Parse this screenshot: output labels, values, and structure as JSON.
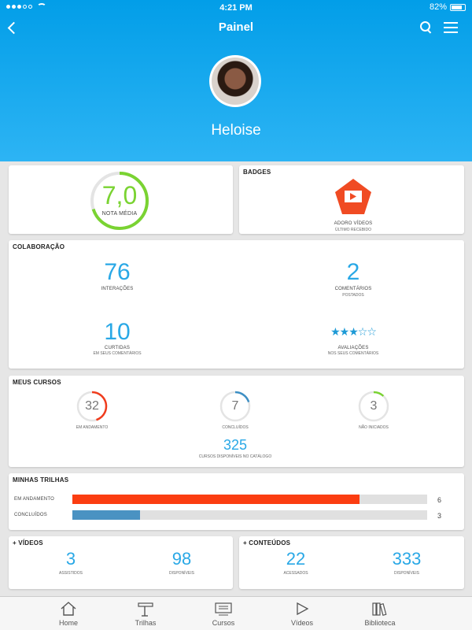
{
  "status": {
    "time": "4:21 PM",
    "battery": "82%"
  },
  "header": {
    "title": "Painel",
    "user": "Heloise"
  },
  "score": {
    "value": "7,0",
    "label": "NOTA MÉDIA",
    "fraction": 0.7
  },
  "badges": {
    "title": "BADGES",
    "name": "ADORO VÍDEOS",
    "sub": "ÚLTIMO RECEBIDO"
  },
  "colab": {
    "title": "COLABORAÇÃO",
    "interacoes": {
      "value": "76",
      "label": "INTERAÇÕES"
    },
    "comentarios": {
      "value": "2",
      "label": "COMENTÁRIOS",
      "sub": "POSTADOS"
    },
    "curtidas": {
      "value": "10",
      "label": "CURTIDAS",
      "sub": "EM SEUS COMENTÁRIOS"
    },
    "avaliacoes": {
      "stars": 3,
      "max": 5,
      "label": "AVALIAÇÕES",
      "sub": "NOS SEUS COMENTÁRIOS"
    }
  },
  "cursos": {
    "title": "MEUS CURSOS",
    "andamento": {
      "value": "32",
      "label": "EM ANDAMENTO",
      "fraction": 0.45,
      "color": "#f03c1d"
    },
    "concluidos": {
      "value": "7",
      "label": "CONCLUÍDOS",
      "fraction": 0.2,
      "color": "#3d8fc4"
    },
    "naoiniciados": {
      "value": "3",
      "label": "NÃO INICIADOS",
      "fraction": 0.12,
      "color": "#7ad332"
    },
    "catalogo": {
      "value": "325",
      "label": "CURSOS DISPONÍVEIS NO CATÁLOGO"
    }
  },
  "trilhas": {
    "title": "MINHAS TRILHAS",
    "rows": [
      {
        "label": "EM ANDAMENTO",
        "value": "6",
        "fraction": 0.81,
        "color": "#fb3d11"
      },
      {
        "label": "CONCLUÍDOS",
        "value": "3",
        "fraction": 0.19,
        "color": "#4a92c2"
      }
    ]
  },
  "videos": {
    "title": "+ VÍDEOS",
    "a": {
      "value": "3",
      "label": "ASSISTIDOS"
    },
    "b": {
      "value": "98",
      "label": "DISPONÍVEIS"
    }
  },
  "conteudos": {
    "title": "+ CONTEÚDOS",
    "a": {
      "value": "22",
      "label": "ACESSADOS"
    },
    "b": {
      "value": "333",
      "label": "DISPONÍVEIS"
    }
  },
  "tabs": [
    "Home",
    "Trilhas",
    "Cursos",
    "Vídeos",
    "Biblioteca"
  ]
}
